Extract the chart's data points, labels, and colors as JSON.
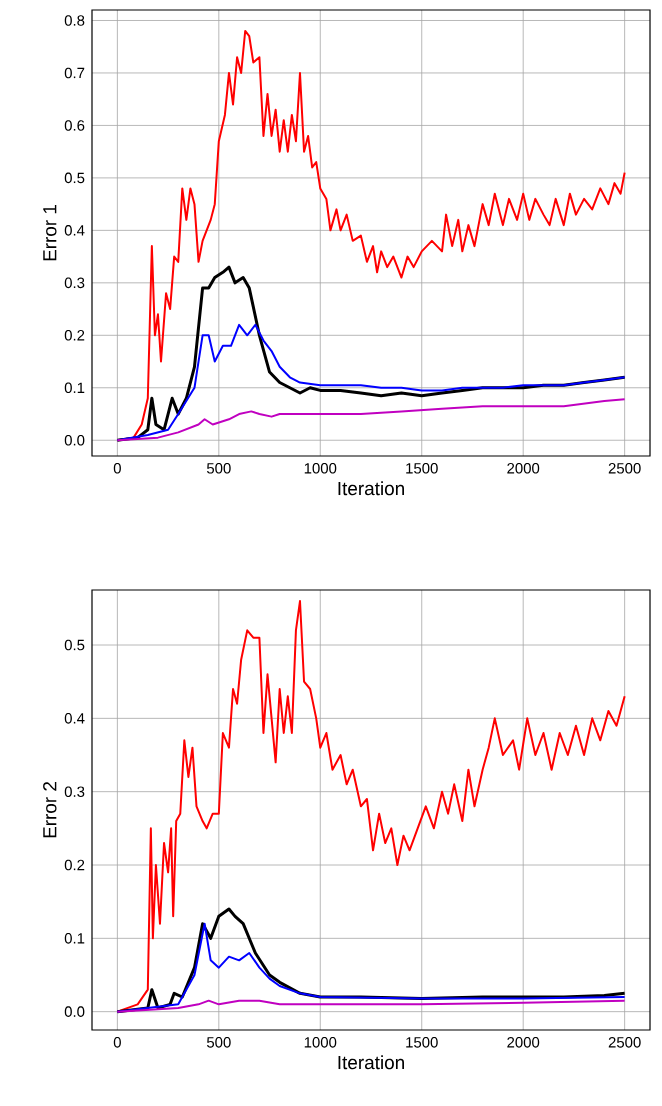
{
  "chart_data": [
    {
      "type": "line",
      "xlabel": "Iteration",
      "ylabel": "Error 1",
      "xlim": [
        -125,
        2625
      ],
      "ylim": [
        -0.03,
        0.82
      ],
      "xticks": [
        0,
        500,
        1000,
        1500,
        2000,
        2500
      ],
      "yticks": [
        {
          "value": 0,
          "label": "0.0"
        },
        {
          "value": 0.1,
          "label": "0.1"
        },
        {
          "value": 0.2,
          "label": "0.2"
        },
        {
          "value": 0.3,
          "label": "0.3"
        },
        {
          "value": 0.4,
          "label": "0.4"
        },
        {
          "value": 0.5,
          "label": "0.5"
        },
        {
          "value": 0.6,
          "label": "0.6"
        },
        {
          "value": 0.7,
          "label": "0.7"
        },
        {
          "value": 0.8,
          "label": "0.8"
        }
      ],
      "grid": true,
      "marker": "none",
      "line_style": "solid",
      "series": [
        {
          "color": "#ff0000",
          "x": [
            0,
            80,
            120,
            150,
            170,
            185,
            200,
            215,
            240,
            260,
            280,
            300,
            320,
            340,
            360,
            380,
            400,
            420,
            460,
            480,
            500,
            530,
            550,
            570,
            590,
            610,
            630,
            650,
            670,
            700,
            720,
            740,
            760,
            780,
            800,
            820,
            840,
            860,
            880,
            900,
            920,
            940,
            960,
            980,
            1000,
            1030,
            1050,
            1080,
            1100,
            1130,
            1160,
            1200,
            1230,
            1260,
            1280,
            1300,
            1330,
            1360,
            1400,
            1430,
            1460,
            1500,
            1550,
            1600,
            1620,
            1650,
            1680,
            1700,
            1730,
            1760,
            1800,
            1830,
            1860,
            1900,
            1930,
            1970,
            2000,
            2030,
            2060,
            2100,
            2130,
            2160,
            2200,
            2230,
            2260,
            2300,
            2340,
            2380,
            2420,
            2450,
            2480,
            2500
          ],
          "values": [
            0,
            0.005,
            0.03,
            0.08,
            0.37,
            0.2,
            0.24,
            0.15,
            0.28,
            0.25,
            0.35,
            0.34,
            0.48,
            0.42,
            0.48,
            0.45,
            0.34,
            0.38,
            0.42,
            0.45,
            0.57,
            0.62,
            0.7,
            0.64,
            0.73,
            0.7,
            0.78,
            0.77,
            0.72,
            0.73,
            0.58,
            0.66,
            0.58,
            0.63,
            0.55,
            0.61,
            0.55,
            0.62,
            0.57,
            0.7,
            0.55,
            0.58,
            0.52,
            0.53,
            0.48,
            0.46,
            0.4,
            0.44,
            0.4,
            0.43,
            0.38,
            0.39,
            0.34,
            0.37,
            0.32,
            0.36,
            0.33,
            0.35,
            0.31,
            0.35,
            0.33,
            0.36,
            0.38,
            0.36,
            0.43,
            0.37,
            0.42,
            0.36,
            0.41,
            0.37,
            0.45,
            0.41,
            0.47,
            0.41,
            0.46,
            0.42,
            0.47,
            0.42,
            0.46,
            0.43,
            0.41,
            0.46,
            0.41,
            0.47,
            0.43,
            0.46,
            0.44,
            0.48,
            0.45,
            0.49,
            0.47,
            0.51
          ]
        },
        {
          "color": "#000000",
          "x": [
            0,
            100,
            150,
            170,
            190,
            230,
            270,
            300,
            340,
            380,
            420,
            450,
            480,
            520,
            550,
            580,
            620,
            650,
            700,
            750,
            800,
            850,
            900,
            950,
            1000,
            1100,
            1200,
            1300,
            1400,
            1500,
            1600,
            1700,
            1800,
            1900,
            2000,
            2100,
            2200,
            2300,
            2400,
            2500
          ],
          "values": [
            0,
            0.005,
            0.02,
            0.08,
            0.03,
            0.02,
            0.08,
            0.05,
            0.08,
            0.14,
            0.29,
            0.29,
            0.31,
            0.32,
            0.33,
            0.3,
            0.31,
            0.29,
            0.2,
            0.13,
            0.11,
            0.1,
            0.09,
            0.1,
            0.095,
            0.095,
            0.09,
            0.085,
            0.09,
            0.085,
            0.09,
            0.095,
            0.1,
            0.1,
            0.1,
            0.105,
            0.105,
            0.11,
            0.115,
            0.12
          ]
        },
        {
          "color": "#0000ff",
          "x": [
            0,
            150,
            250,
            300,
            380,
            420,
            450,
            480,
            520,
            560,
            600,
            640,
            680,
            720,
            760,
            800,
            850,
            900,
            1000,
            1100,
            1200,
            1300,
            1400,
            1500,
            1600,
            1700,
            1800,
            1900,
            2000,
            2100,
            2200,
            2300,
            2400,
            2500
          ],
          "values": [
            0,
            0.01,
            0.02,
            0.05,
            0.1,
            0.2,
            0.2,
            0.15,
            0.18,
            0.18,
            0.22,
            0.2,
            0.22,
            0.19,
            0.17,
            0.14,
            0.12,
            0.11,
            0.105,
            0.105,
            0.105,
            0.1,
            0.1,
            0.095,
            0.095,
            0.1,
            0.1,
            0.1,
            0.105,
            0.105,
            0.105,
            0.11,
            0.115,
            0.12
          ]
        },
        {
          "color": "#c000c0",
          "x": [
            0,
            200,
            300,
            400,
            430,
            470,
            550,
            600,
            660,
            700,
            760,
            800,
            900,
            1000,
            1200,
            1400,
            1600,
            1800,
            2000,
            2200,
            2300,
            2400,
            2500
          ],
          "values": [
            0,
            0.005,
            0.015,
            0.03,
            0.04,
            0.03,
            0.04,
            0.05,
            0.055,
            0.05,
            0.045,
            0.05,
            0.05,
            0.05,
            0.05,
            0.055,
            0.06,
            0.065,
            0.065,
            0.065,
            0.07,
            0.075,
            0.078
          ]
        }
      ]
    },
    {
      "type": "line",
      "xlabel": "Iteration",
      "ylabel": "Error 2",
      "xlim": [
        -125,
        2625
      ],
      "ylim": [
        -0.025,
        0.575
      ],
      "xticks": [
        0,
        500,
        1000,
        1500,
        2000,
        2500
      ],
      "yticks": [
        {
          "value": 0,
          "label": "0.0"
        },
        {
          "value": 0.1,
          "label": "0.1"
        },
        {
          "value": 0.2,
          "label": "0.2"
        },
        {
          "value": 0.3,
          "label": "0.3"
        },
        {
          "value": 0.4,
          "label": "0.4"
        },
        {
          "value": 0.5,
          "label": "0.5"
        }
      ],
      "grid": true,
      "marker": "none",
      "line_style": "solid",
      "series": [
        {
          "color": "#ff0000",
          "x": [
            0,
            100,
            150,
            165,
            175,
            190,
            210,
            230,
            250,
            265,
            275,
            290,
            310,
            330,
            350,
            370,
            390,
            420,
            440,
            470,
            500,
            520,
            550,
            570,
            590,
            610,
            640,
            670,
            700,
            720,
            740,
            760,
            780,
            800,
            820,
            840,
            860,
            880,
            900,
            920,
            950,
            980,
            1000,
            1030,
            1060,
            1100,
            1130,
            1160,
            1200,
            1230,
            1260,
            1290,
            1320,
            1350,
            1380,
            1410,
            1440,
            1480,
            1520,
            1560,
            1600,
            1630,
            1660,
            1700,
            1730,
            1760,
            1800,
            1830,
            1860,
            1900,
            1950,
            1980,
            2020,
            2060,
            2100,
            2140,
            2180,
            2220,
            2260,
            2300,
            2340,
            2380,
            2420,
            2460,
            2500
          ],
          "values": [
            0,
            0.01,
            0.03,
            0.25,
            0.1,
            0.2,
            0.12,
            0.23,
            0.19,
            0.25,
            0.13,
            0.26,
            0.27,
            0.37,
            0.32,
            0.36,
            0.28,
            0.26,
            0.25,
            0.27,
            0.27,
            0.38,
            0.36,
            0.44,
            0.42,
            0.48,
            0.52,
            0.51,
            0.51,
            0.38,
            0.46,
            0.4,
            0.34,
            0.44,
            0.38,
            0.43,
            0.38,
            0.52,
            0.56,
            0.45,
            0.44,
            0.4,
            0.36,
            0.38,
            0.33,
            0.35,
            0.31,
            0.33,
            0.28,
            0.29,
            0.22,
            0.27,
            0.23,
            0.25,
            0.2,
            0.24,
            0.22,
            0.25,
            0.28,
            0.25,
            0.3,
            0.27,
            0.31,
            0.26,
            0.33,
            0.28,
            0.33,
            0.36,
            0.4,
            0.35,
            0.37,
            0.33,
            0.4,
            0.35,
            0.38,
            0.33,
            0.38,
            0.35,
            0.39,
            0.35,
            0.4,
            0.37,
            0.41,
            0.39,
            0.43
          ]
        },
        {
          "color": "#000000",
          "x": [
            0,
            150,
            170,
            200,
            260,
            280,
            320,
            380,
            420,
            460,
            500,
            550,
            580,
            620,
            680,
            750,
            800,
            900,
            1000,
            1200,
            1500,
            1800,
            2000,
            2200,
            2400,
            2500
          ],
          "values": [
            0,
            0.005,
            0.03,
            0.005,
            0.01,
            0.025,
            0.02,
            0.06,
            0.12,
            0.1,
            0.13,
            0.14,
            0.13,
            0.12,
            0.08,
            0.05,
            0.04,
            0.025,
            0.02,
            0.02,
            0.018,
            0.02,
            0.02,
            0.02,
            0.022,
            0.025
          ]
        },
        {
          "color": "#0000ff",
          "x": [
            0,
            300,
            380,
            430,
            460,
            500,
            550,
            600,
            650,
            700,
            750,
            800,
            900,
            1000,
            1500,
            2000,
            2500
          ],
          "values": [
            0,
            0.01,
            0.05,
            0.12,
            0.07,
            0.06,
            0.075,
            0.07,
            0.08,
            0.06,
            0.045,
            0.035,
            0.025,
            0.02,
            0.018,
            0.018,
            0.02
          ]
        },
        {
          "color": "#c000c0",
          "x": [
            0,
            300,
            400,
            450,
            500,
            600,
            700,
            800,
            1000,
            1500,
            2000,
            2500
          ],
          "values": [
            0,
            0.005,
            0.01,
            0.015,
            0.01,
            0.015,
            0.015,
            0.01,
            0.01,
            0.01,
            0.012,
            0.015
          ]
        }
      ]
    }
  ]
}
